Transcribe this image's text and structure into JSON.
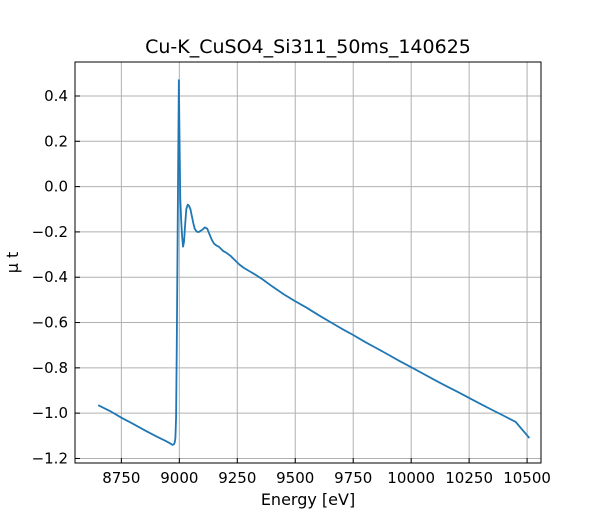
{
  "chart_data": {
    "type": "line",
    "title": "Cu-K_CuSO4_Si311_50ms_140625",
    "xlabel": "Energy [eV]",
    "ylabel": "μ t",
    "xlim": [
      8550,
      10560
    ],
    "ylim": [
      -1.22,
      0.55
    ],
    "grid": true,
    "x_ticks": [
      8750,
      9000,
      9250,
      9500,
      9750,
      10000,
      10250,
      10500
    ],
    "y_ticks": [
      0.4,
      0.2,
      0.0,
      -0.2,
      -0.4,
      -0.6,
      -0.8,
      -1.0,
      -1.2
    ],
    "x_tick_labels": [
      "8750",
      "9000",
      "9250",
      "9500",
      "9750",
      "10000",
      "10250",
      "10500"
    ],
    "y_tick_labels": [
      "0.4",
      "0.2",
      "0.0",
      "−0.2",
      "−0.4",
      "−0.6",
      "−0.8",
      "−1.0",
      "−1.2"
    ],
    "series": [
      {
        "color": "#1f77b4",
        "x": [
          8650,
          8700,
          8750,
          8800,
          8850,
          8900,
          8940,
          8960,
          8970,
          8976,
          8980,
          8983,
          8986,
          8989,
          8992,
          8995,
          8998,
          9001,
          9004,
          9008,
          9012,
          9016,
          9020,
          9025,
          9030,
          9036,
          9042,
          9048,
          9054,
          9060,
          9066,
          9072,
          9078,
          9085,
          9092,
          9100,
          9110,
          9120,
          9130,
          9140,
          9150,
          9160,
          9170,
          9180,
          9190,
          9200,
          9220,
          9240,
          9260,
          9280,
          9300,
          9330,
          9360,
          9400,
          9450,
          9500,
          9550,
          9600,
          9650,
          9700,
          9750,
          9800,
          9850,
          9900,
          9950,
          10000,
          10050,
          10100,
          10150,
          10200,
          10250,
          10300,
          10350,
          10400,
          10450,
          10510
        ],
        "y": [
          -0.965,
          -0.99,
          -1.02,
          -1.047,
          -1.075,
          -1.102,
          -1.122,
          -1.133,
          -1.14,
          -1.138,
          -1.13,
          -1.11,
          -1.02,
          -0.7,
          -0.3,
          0.1,
          0.47,
          0.2,
          -0.05,
          -0.15,
          -0.22,
          -0.265,
          -0.245,
          -0.17,
          -0.1,
          -0.08,
          -0.085,
          -0.1,
          -0.13,
          -0.16,
          -0.185,
          -0.195,
          -0.2,
          -0.2,
          -0.195,
          -0.19,
          -0.18,
          -0.185,
          -0.21,
          -0.235,
          -0.252,
          -0.26,
          -0.265,
          -0.275,
          -0.285,
          -0.29,
          -0.305,
          -0.325,
          -0.345,
          -0.36,
          -0.372,
          -0.39,
          -0.41,
          -0.44,
          -0.475,
          -0.506,
          -0.535,
          -0.567,
          -0.597,
          -0.627,
          -0.655,
          -0.685,
          -0.713,
          -0.741,
          -0.77,
          -0.797,
          -0.825,
          -0.853,
          -0.88,
          -0.906,
          -0.933,
          -0.96,
          -0.986,
          -1.012,
          -1.038,
          -1.11
        ]
      }
    ]
  }
}
